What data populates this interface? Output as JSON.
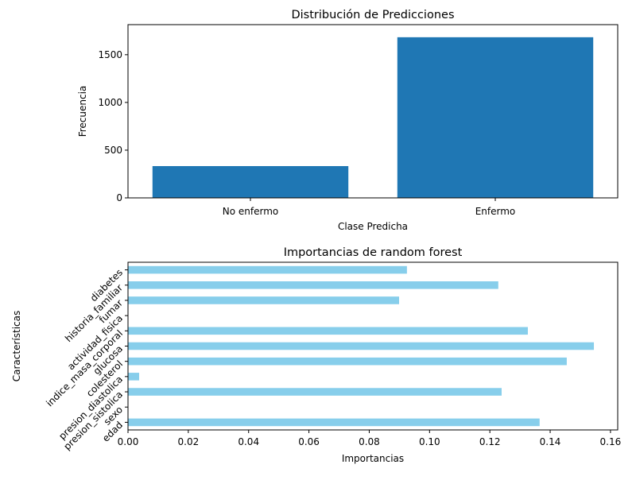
{
  "chart_data": [
    {
      "type": "bar",
      "title": "Distribución de Predicciones",
      "x_label": "Clase Predicha",
      "y_label": "Frecuencia",
      "categories": [
        "No enfermo",
        "Enfermo"
      ],
      "values": [
        333,
        1683
      ],
      "color": "#1f77b4",
      "ylim": [
        0,
        1815
      ],
      "yticks": [
        0,
        500,
        1000,
        1500
      ]
    },
    {
      "type": "barh",
      "title": "Importancias de random forest",
      "x_label": "Importancias",
      "y_label": "Características",
      "categories": [
        "edad",
        "sexo",
        "presion_sistolica",
        "presion_diastolica",
        "colesterol",
        "glucosa",
        "indice_masa_corporal",
        "actividad_fisica",
        "fumar",
        "historia_familiar",
        "diabetes"
      ],
      "values": [
        0.1365,
        0,
        0.1239,
        0.0037,
        0.1455,
        0.1545,
        0.1326,
        0,
        0.0899,
        0.1228,
        0.0925
      ],
      "color": "#87ceeb",
      "xlim": [
        0,
        0.1624
      ],
      "xticks": [
        {
          "value": 0,
          "label": "0.00"
        },
        {
          "value": 0.02,
          "label": "0.02"
        },
        {
          "value": 0.04,
          "label": "0.04"
        },
        {
          "value": 0.06,
          "label": "0.06"
        },
        {
          "value": 0.08,
          "label": "0.08"
        },
        {
          "value": 0.1,
          "label": "0.10"
        },
        {
          "value": 0.12,
          "label": "0.12"
        },
        {
          "value": 0.14,
          "label": "0.14"
        },
        {
          "value": 0.16,
          "label": "0.16"
        }
      ]
    }
  ]
}
